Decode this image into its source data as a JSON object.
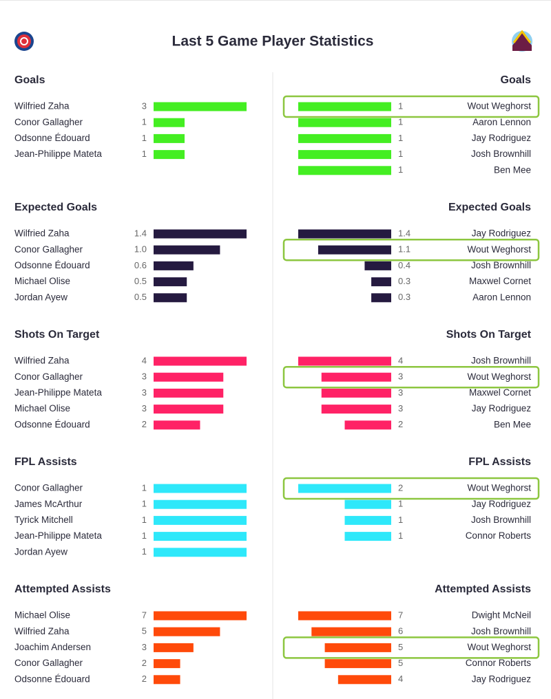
{
  "title": "Last 5 Game Player Statistics",
  "chart_data": [
    {
      "type": "bar",
      "side": "left",
      "title": "Goals",
      "color": "#44ee22",
      "categories": [
        "Wilfried Zaha",
        "Conor Gallagher",
        "Odsonne Édouard",
        "Jean-Philippe Mateta"
      ],
      "values": [
        3,
        1,
        1,
        1
      ]
    },
    {
      "type": "bar",
      "side": "right",
      "title": "Goals",
      "color": "#44ee22",
      "highlight": 0,
      "categories": [
        "Wout Weghorst",
        "Aaron Lennon",
        "Jay Rodriguez",
        "Josh Brownhill",
        "Ben Mee"
      ],
      "values": [
        1,
        1,
        1,
        1,
        1
      ]
    },
    {
      "type": "bar",
      "side": "left",
      "title": "Expected Goals",
      "color": "#251a40",
      "categories": [
        "Wilfried Zaha",
        "Conor Gallagher",
        "Odsonne Édouard",
        "Michael Olise",
        "Jordan Ayew"
      ],
      "values": [
        1.4,
        1.0,
        0.6,
        0.5,
        0.5
      ],
      "value_labels": [
        "1.4",
        "1.0",
        "0.6",
        "0.5",
        "0.5"
      ]
    },
    {
      "type": "bar",
      "side": "right",
      "title": "Expected Goals",
      "color": "#251a40",
      "highlight": 1,
      "categories": [
        "Jay Rodriguez",
        "Wout Weghorst",
        "Josh Brownhill",
        "Maxwel Cornet",
        "Aaron Lennon"
      ],
      "values": [
        1.4,
        1.1,
        0.4,
        0.3,
        0.3
      ],
      "value_labels": [
        "1.4",
        "1.1",
        "0.4",
        "0.3",
        "0.3"
      ]
    },
    {
      "type": "bar",
      "side": "left",
      "title": "Shots On Target",
      "color": "#ff2266",
      "categories": [
        "Wilfried Zaha",
        "Conor Gallagher",
        "Jean-Philippe Mateta",
        "Michael Olise",
        "Odsonne Édouard"
      ],
      "values": [
        4,
        3,
        3,
        3,
        2
      ]
    },
    {
      "type": "bar",
      "side": "right",
      "title": "Shots On Target",
      "color": "#ff2266",
      "highlight": 1,
      "categories": [
        "Josh Brownhill",
        "Wout Weghorst",
        "Maxwel Cornet",
        "Jay Rodriguez",
        "Ben Mee"
      ],
      "values": [
        4,
        3,
        3,
        3,
        2
      ]
    },
    {
      "type": "bar",
      "side": "left",
      "title": "FPL Assists",
      "color": "#2ee8fa",
      "categories": [
        "Conor Gallagher",
        "James McArthur",
        "Tyrick Mitchell",
        "Jean-Philippe Mateta",
        "Jordan Ayew"
      ],
      "values": [
        1,
        1,
        1,
        1,
        1
      ]
    },
    {
      "type": "bar",
      "side": "right",
      "title": "FPL Assists",
      "color": "#2ee8fa",
      "highlight": 0,
      "categories": [
        "Wout Weghorst",
        "Jay Rodriguez",
        "Josh Brownhill",
        "Connor Roberts"
      ],
      "values": [
        2,
        1,
        1,
        1
      ]
    },
    {
      "type": "bar",
      "side": "left",
      "title": "Attempted Assists",
      "color": "#ff4a0a",
      "categories": [
        "Michael Olise",
        "Wilfried Zaha",
        "Joachim Andersen",
        "Conor Gallagher",
        "Odsonne Édouard"
      ],
      "values": [
        7,
        5,
        3,
        2,
        2
      ]
    },
    {
      "type": "bar",
      "side": "right",
      "title": "Attempted Assists",
      "color": "#ff4a0a",
      "highlight": 2,
      "categories": [
        "Dwight McNeil",
        "Josh Brownhill",
        "Wout Weghorst",
        "Connor Roberts",
        "Jay Rodriguez"
      ],
      "values": [
        7,
        6,
        5,
        5,
        4
      ]
    }
  ]
}
